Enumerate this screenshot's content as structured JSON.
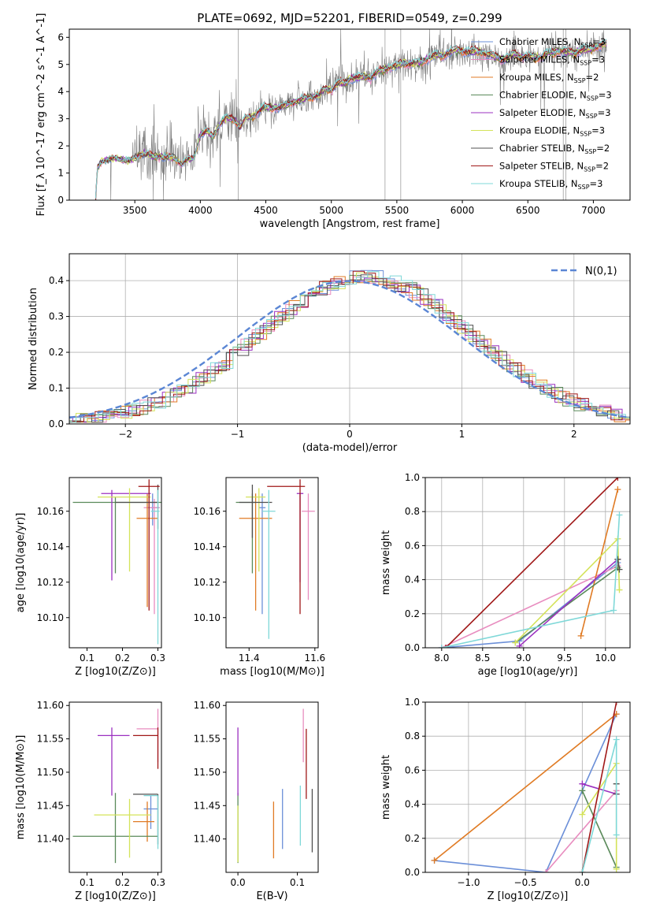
{
  "colors": {
    "chabrier_miles": "#6b8fd8",
    "salpeter_miles": "#e88cbf",
    "kroupa_miles": "#e07b24",
    "chabrier_elodie": "#5a8a5a",
    "salpeter_elodie": "#9b30c0",
    "kroupa_elodie": "#d4e35a",
    "chabrier_stelib": "#505050",
    "salpeter_stelib": "#a01818",
    "kroupa_stelib": "#7fd8d8",
    "data": "#7f7f7f",
    "normal": "#5b86d4",
    "grid": "#b0b0b0"
  },
  "chart_data": [
    {
      "id": "spectrum",
      "type": "line",
      "title": "PLATE=0692, MJD=52201, FIBERID=0549, z=0.299",
      "xlabel": "wavelength [Angstrom, rest frame]",
      "ylabel": "Flux [f_λ 10^-17 erg cm^-2 s^-1 A^-1]",
      "xlim": [
        3000,
        7280
      ],
      "ylim": [
        0,
        6.3
      ],
      "xticks": [
        3500,
        4000,
        4500,
        5000,
        5500,
        6000,
        6500,
        7000
      ],
      "yticks": [
        0,
        1,
        2,
        3,
        4,
        5,
        6
      ],
      "grid": false,
      "legend": "top-right",
      "series": [
        {
          "name": "Chabrier MILES, N_SSP=3",
          "key": "chabrier_miles"
        },
        {
          "name": "Salpeter MILES, N_SSP=3",
          "key": "salpeter_miles"
        },
        {
          "name": "Kroupa MILES, N_SSP=2",
          "key": "kroupa_miles"
        },
        {
          "name": "Chabrier ELODIE, N_SSP=3",
          "key": "chabrier_elodie"
        },
        {
          "name": "Salpeter ELODIE, N_SSP=3",
          "key": "salpeter_elodie"
        },
        {
          "name": "Kroupa ELODIE, N_SSP=3",
          "key": "kroupa_elodie"
        },
        {
          "name": "Chabrier STELIB, N_SSP=2",
          "key": "chabrier_stelib"
        },
        {
          "name": "Salpeter STELIB, N_SSP=2",
          "key": "salpeter_stelib"
        },
        {
          "name": "Kroupa STELIB, N_SSP=3",
          "key": "kroupa_stelib"
        }
      ],
      "model_continuum": {
        "x": [
          3200,
          3215,
          3240,
          3300,
          3350,
          3400,
          3450,
          3500,
          3550,
          3600,
          3650,
          3700,
          3750,
          3800,
          3850,
          3900,
          3950,
          4000,
          4050,
          4100,
          4150,
          4200,
          4250,
          4300,
          4350,
          4400,
          4450,
          4500,
          4550,
          4600,
          4650,
          4700,
          4750,
          4800,
          4850,
          4900,
          4950,
          5000,
          5050,
          5100,
          5150,
          5200,
          5250,
          5300,
          5350,
          5400,
          5450,
          5500,
          5550,
          5600,
          5650,
          5700,
          5750,
          5800,
          5850,
          5900,
          5950,
          6000,
          6050,
          6100,
          6150,
          6200,
          6250,
          6300,
          6350,
          6400,
          6450,
          6500,
          6550,
          6600,
          6650,
          6700,
          6750,
          6800,
          6850,
          6900,
          6950,
          7000,
          7050,
          7100
        ],
        "y": [
          0,
          1.2,
          1.4,
          1.5,
          1.55,
          1.5,
          1.45,
          1.55,
          1.7,
          1.7,
          1.6,
          1.6,
          1.6,
          1.55,
          1.35,
          1.5,
          1.55,
          2.4,
          2.55,
          2.35,
          2.8,
          3.05,
          3.0,
          2.7,
          3.05,
          3.05,
          3.3,
          3.45,
          3.4,
          3.4,
          3.5,
          3.6,
          3.65,
          3.75,
          3.8,
          3.85,
          4.1,
          4.05,
          4.3,
          4.3,
          4.5,
          4.5,
          4.55,
          4.5,
          4.7,
          4.8,
          4.9,
          4.95,
          5.05,
          5.0,
          5.05,
          5.1,
          5.25,
          5.35,
          5.3,
          5.45,
          5.55,
          5.5,
          5.45,
          5.5,
          5.45,
          5.35,
          5.3,
          5.2,
          5.25,
          5.4,
          5.25,
          5.3,
          5.25,
          5.25,
          5.4,
          5.45,
          5.5,
          5.45,
          5.4,
          5.5,
          5.55,
          5.6,
          5.7,
          5.75
        ]
      }
    },
    {
      "id": "residuals",
      "type": "step",
      "xlabel": "(data-model)/error",
      "ylabel": "Normed distribution",
      "xlim": [
        -2.5,
        2.5
      ],
      "ylim": [
        0,
        0.475
      ],
      "xticks": [
        -2,
        -1,
        0,
        1,
        2
      ],
      "yticks": [
        0.0,
        0.1,
        0.2,
        0.3,
        0.4
      ],
      "grid": true,
      "legend": "top-right",
      "normal_label": "N(0,1)",
      "bin_width": 0.1
    },
    {
      "id": "age_vs_Z",
      "type": "errorbar",
      "xlabel": "Z [log10(Z/Z⊙)]",
      "ylabel": "age  [log10(age/yr)]",
      "xlim": [
        0.05,
        0.31
      ],
      "ylim": [
        10.083,
        10.179
      ],
      "xticks": [
        0.1,
        0.2,
        0.3
      ],
      "yticks": [
        10.1,
        10.12,
        10.14,
        10.16
      ],
      "points": [
        {
          "key": "chabrier_miles",
          "x": 0.285,
          "xerr": [
            0.015,
            0.02
          ],
          "y": 10.162,
          "yerr": [
            0.01,
            0.008
          ]
        },
        {
          "key": "salpeter_miles",
          "x": 0.29,
          "xerr": [
            0.03,
            0.015
          ],
          "y": 10.162,
          "yerr": [
            0.06,
            0.005
          ]
        },
        {
          "key": "kroupa_miles",
          "x": 0.27,
          "xerr": [
            0.03,
            0.03
          ],
          "y": 10.156,
          "yerr": [
            0.05,
            0.014
          ]
        },
        {
          "key": "chabrier_elodie",
          "x": 0.18,
          "xerr": [
            0.12,
            0.13
          ],
          "y": 10.165,
          "yerr": [
            0.04,
            0.003
          ]
        },
        {
          "key": "salpeter_elodie",
          "x": 0.17,
          "xerr": [
            0.03,
            0.11
          ],
          "y": 10.17,
          "yerr": [
            0.049,
            0.002
          ]
        },
        {
          "key": "kroupa_elodie",
          "x": 0.22,
          "xerr": [
            0.09,
            0.06
          ],
          "y": 10.168,
          "yerr": [
            0.042,
            0.005
          ]
        },
        {
          "key": "chabrier_stelib",
          "x": 0.3,
          "xerr": [
            0.12,
            0.0
          ],
          "y": 10.165,
          "yerr": [
            0.015,
            0.01
          ]
        },
        {
          "key": "salpeter_stelib",
          "x": 0.275,
          "xerr": [
            0.03,
            0.03
          ],
          "y": 10.174,
          "yerr": [
            0.07,
            0.004
          ]
        },
        {
          "key": "kroupa_stelib",
          "x": 0.3,
          "xerr": [
            0.02,
            0.005
          ],
          "y": 10.16,
          "yerr": [
            0.075,
            0.012
          ]
        }
      ]
    },
    {
      "id": "age_vs_mass",
      "type": "errorbar",
      "xlabel": "mass [log10(M/M⊙)]",
      "ylabel": "",
      "xlim": [
        11.33,
        11.61
      ],
      "ylim": [
        10.083,
        10.179
      ],
      "xticks": [
        11.4,
        11.6
      ],
      "yticks": [
        10.1,
        10.12,
        10.14,
        10.16
      ],
      "points": [
        {
          "key": "chabrier_miles",
          "x": 11.44,
          "xerr": [
            0.01,
            0.01
          ],
          "y": 10.162,
          "yerr": [
            0.06,
            0.008
          ]
        },
        {
          "key": "salpeter_miles",
          "x": 11.58,
          "xerr": [
            0.02,
            0.02
          ],
          "y": 10.16,
          "yerr": [
            0.05,
            0.01
          ]
        },
        {
          "key": "kroupa_miles",
          "x": 11.42,
          "xerr": [
            0.05,
            0.05
          ],
          "y": 10.156,
          "yerr": [
            0.052,
            0.014
          ]
        },
        {
          "key": "chabrier_elodie",
          "x": 11.41,
          "xerr": [
            0.05,
            0.01
          ],
          "y": 10.165,
          "yerr": [
            0.04,
            0.005
          ]
        },
        {
          "key": "salpeter_elodie",
          "x": 11.555,
          "xerr": [
            0.01,
            0.01
          ],
          "y": 10.17,
          "yerr": [
            0.05,
            0.0
          ]
        },
        {
          "key": "kroupa_elodie",
          "x": 11.43,
          "xerr": [
            0.04,
            0.02
          ],
          "y": 10.168,
          "yerr": [
            0.042,
            0.005
          ]
        },
        {
          "key": "chabrier_stelib",
          "x": 11.41,
          "xerr": [
            0.04,
            0.06
          ],
          "y": 10.165,
          "yerr": [
            0.02,
            0.01
          ]
        },
        {
          "key": "salpeter_stelib",
          "x": 11.555,
          "xerr": [
            0.1,
            0.015
          ],
          "y": 10.174,
          "yerr": [
            0.072,
            0.004
          ]
        },
        {
          "key": "kroupa_stelib",
          "x": 11.46,
          "xerr": [
            0.02,
            0.02
          ],
          "y": 10.16,
          "yerr": [
            0.072,
            0.012
          ]
        }
      ]
    },
    {
      "id": "weight_vs_age",
      "type": "line",
      "xlabel": "age  [log10(age/yr)]",
      "ylabel": "mass weight",
      "xlim": [
        7.8,
        10.3
      ],
      "ylim": [
        0,
        1
      ],
      "xticks": [
        8.0,
        8.5,
        9.0,
        9.5,
        10.0
      ],
      "yticks": [
        0.0,
        0.2,
        0.4,
        0.6,
        0.8,
        1.0
      ],
      "grid": true,
      "series": [
        {
          "key": "chabrier_miles",
          "x": [
            8.0,
            8.95,
            10.15
          ],
          "y": [
            0.0,
            0.04,
            0.5
          ]
        },
        {
          "key": "salpeter_miles",
          "x": [
            8.0,
            10.15
          ],
          "y": [
            0.0,
            0.48
          ]
        },
        {
          "key": "kroupa_miles",
          "x": [
            9.7,
            10.15
          ],
          "y": [
            0.07,
            0.93
          ]
        },
        {
          "key": "chabrier_elodie",
          "x": [
            8.9,
            10.15
          ],
          "y": [
            0.03,
            0.47
          ]
        },
        {
          "key": "salpeter_elodie",
          "x": [
            8.95,
            10.15
          ],
          "y": [
            0.01,
            0.52
          ]
        },
        {
          "key": "kroupa_elodie",
          "x": [
            8.9,
            10.15,
            10.17
          ],
          "y": [
            0.03,
            0.64,
            0.34
          ]
        },
        {
          "key": "chabrier_stelib",
          "x": [
            10.15,
            10.17
          ],
          "y": [
            0.52,
            0.46
          ]
        },
        {
          "key": "salpeter_stelib",
          "x": [
            8.05,
            10.15
          ],
          "y": [
            0.0,
            1.0
          ]
        },
        {
          "key": "kroupa_stelib",
          "x": [
            8.0,
            10.1,
            10.17
          ],
          "y": [
            0.0,
            0.22,
            0.78
          ]
        }
      ]
    },
    {
      "id": "mass_vs_Z",
      "type": "errorbar",
      "xlabel": "Z [log10(Z/Z⊙)]",
      "ylabel": "mass [log10(M/M⊙)]",
      "xlim": [
        0.05,
        0.31
      ],
      "ylim": [
        11.35,
        11.605
      ],
      "xticks": [
        0.1,
        0.2,
        0.3
      ],
      "yticks": [
        11.4,
        11.45,
        11.5,
        11.55,
        11.6
      ],
      "points": [
        {
          "key": "chabrier_miles",
          "x": 0.28,
          "xerr": [
            0.02,
            0.02
          ],
          "y": 11.445,
          "yerr": [
            0.03,
            0.02
          ]
        },
        {
          "key": "salpeter_miles",
          "x": 0.3,
          "xerr": [
            0.06,
            0.0
          ],
          "y": 11.565,
          "yerr": [
            0.05,
            0.03
          ]
        },
        {
          "key": "kroupa_miles",
          "x": 0.27,
          "xerr": [
            0.04,
            0.02
          ],
          "y": 11.426,
          "yerr": [
            0.03,
            0.03
          ]
        },
        {
          "key": "chabrier_elodie",
          "x": 0.18,
          "xerr": [
            0.12,
            0.12
          ],
          "y": 11.404,
          "yerr": [
            0.04,
            0.065
          ]
        },
        {
          "key": "salpeter_elodie",
          "x": 0.17,
          "xerr": [
            0.04,
            0.05
          ],
          "y": 11.555,
          "yerr": [
            0.09,
            0.012
          ]
        },
        {
          "key": "kroupa_elodie",
          "x": 0.22,
          "xerr": [
            0.1,
            0.06
          ],
          "y": 11.436,
          "yerr": [
            0.064,
            0.024
          ]
        },
        {
          "key": "chabrier_stelib",
          "x": 0.3,
          "xerr": [
            0.07,
            0.0
          ],
          "y": 11.467,
          "yerr": [
            0.075,
            0.0
          ]
        },
        {
          "key": "salpeter_stelib",
          "x": 0.3,
          "xerr": [
            0.07,
            0.0
          ],
          "y": 11.555,
          "yerr": [
            0.05,
            0.012
          ]
        },
        {
          "key": "kroupa_stelib",
          "x": 0.3,
          "xerr": [
            0.04,
            0.0
          ],
          "y": 11.465,
          "yerr": [
            0.08,
            0.0
          ]
        }
      ]
    },
    {
      "id": "mass_vs_ebv",
      "type": "errorbar",
      "xlabel": "E(B-V)",
      "ylabel": "",
      "xlim": [
        -0.02,
        0.135
      ],
      "ylim": [
        11.35,
        11.605
      ],
      "xticks": [
        0.0,
        0.1
      ],
      "yticks": [
        11.4,
        11.45,
        11.5,
        11.55,
        11.6
      ],
      "points": [
        {
          "key": "chabrier_miles",
          "x": 0.075,
          "xerr": [
            0,
            0
          ],
          "y": 11.445,
          "yerr": [
            0.06,
            0.03
          ]
        },
        {
          "key": "salpeter_miles",
          "x": 0.11,
          "xerr": [
            0,
            0
          ],
          "y": 11.565,
          "yerr": [
            0.05,
            0.03
          ]
        },
        {
          "key": "kroupa_miles",
          "x": 0.06,
          "xerr": [
            0,
            0
          ],
          "y": 11.426,
          "yerr": [
            0.055,
            0.03
          ]
        },
        {
          "key": "chabrier_elodie",
          "x": 0.0,
          "xerr": [
            0,
            0
          ],
          "y": 11.404,
          "yerr": [
            0.04,
            0.065
          ]
        },
        {
          "key": "salpeter_elodie",
          "x": 0.0,
          "xerr": [
            0,
            0
          ],
          "y": 11.555,
          "yerr": [
            0.09,
            0.012
          ]
        },
        {
          "key": "kroupa_elodie",
          "x": 0.0,
          "xerr": [
            0,
            0
          ],
          "y": 11.38,
          "yerr": [
            0.015,
            0.07
          ]
        },
        {
          "key": "chabrier_stelib",
          "x": 0.125,
          "xerr": [
            0,
            0
          ],
          "y": 11.43,
          "yerr": [
            0.05,
            0.045
          ]
        },
        {
          "key": "salpeter_stelib",
          "x": 0.115,
          "xerr": [
            0,
            0
          ],
          "y": 11.51,
          "yerr": [
            0.05,
            0.055
          ]
        },
        {
          "key": "kroupa_stelib",
          "x": 0.105,
          "xerr": [
            0,
            0
          ],
          "y": 11.44,
          "yerr": [
            0.05,
            0.04
          ]
        }
      ]
    },
    {
      "id": "weight_vs_Z",
      "type": "line",
      "xlabel": "Z [log10(Z/Z⊙)]",
      "ylabel": "mass weight",
      "xlim": [
        -1.38,
        0.42
      ],
      "ylim": [
        0,
        1
      ],
      "xticks": [
        -1.0,
        -0.5,
        0.0
      ],
      "yticks": [
        0.0,
        0.2,
        0.4,
        0.6,
        0.8,
        1.0
      ],
      "grid": true,
      "series": [
        {
          "key": "chabrier_miles",
          "x": [
            -1.3,
            -0.32,
            0.3
          ],
          "y": [
            0.07,
            0.0,
            0.93
          ]
        },
        {
          "key": "salpeter_miles",
          "x": [
            -0.32,
            0.3
          ],
          "y": [
            0.0,
            0.48
          ]
        },
        {
          "key": "kroupa_miles",
          "x": [
            -1.3,
            0.3
          ],
          "y": [
            0.07,
            0.93
          ]
        },
        {
          "key": "chabrier_elodie",
          "x": [
            0.0,
            0.3
          ],
          "y": [
            0.48,
            0.03
          ]
        },
        {
          "key": "salpeter_elodie",
          "x": [
            0.0,
            0.3
          ],
          "y": [
            0.52,
            0.46
          ]
        },
        {
          "key": "kroupa_elodie",
          "x": [
            0.0,
            0.3,
            0.3
          ],
          "y": [
            0.34,
            0.64,
            0.02
          ]
        },
        {
          "key": "chabrier_stelib",
          "x": [
            0.3,
            0.3
          ],
          "y": [
            0.52,
            0.46
          ]
        },
        {
          "key": "salpeter_stelib",
          "x": [
            0.0,
            0.3
          ],
          "y": [
            0.0,
            1.0
          ]
        },
        {
          "key": "kroupa_stelib",
          "x": [
            0.0,
            0.3,
            0.3
          ],
          "y": [
            0.0,
            0.78,
            0.22
          ]
        }
      ]
    }
  ]
}
